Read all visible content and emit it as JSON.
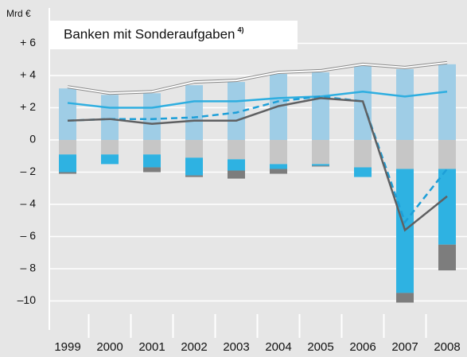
{
  "chart_data": {
    "type": "bar",
    "title": "Banken mit Sonderaufgaben",
    "title_note": "4)",
    "y_label": "Mrd €",
    "categories": [
      "1999",
      "2000",
      "2001",
      "2002",
      "2003",
      "2004",
      "2005",
      "2006",
      "2007",
      "2008"
    ],
    "ylim": [
      -11.8,
      8
    ],
    "yticks": [
      {
        "value": 6,
        "label": "+ 6"
      },
      {
        "value": 4,
        "label": "+ 4"
      },
      {
        "value": 2,
        "label": "+ 2"
      },
      0,
      {
        "value": -2,
        "label": "– 2"
      },
      {
        "value": -4,
        "label": "– 4"
      },
      {
        "value": -6,
        "label": "– 6"
      },
      {
        "value": -8,
        "label": "– 8"
      },
      {
        "value": -10,
        "label": "–10"
      }
    ],
    "grid": true,
    "series": [
      {
        "type": "bar",
        "color": "#9fcde6",
        "values": [
          3.2,
          2.8,
          2.9,
          3.4,
          3.6,
          4.1,
          4.2,
          4.6,
          4.4,
          4.7
        ]
      },
      {
        "type": "bar",
        "color": "#c6c6c6",
        "values": [
          -0.9,
          -0.9,
          -0.9,
          -1.1,
          -1.2,
          -1.5,
          -1.5,
          -1.7,
          -1.8,
          -1.8
        ]
      },
      {
        "type": "bar",
        "color": "#2eb2e2",
        "values": [
          -1.1,
          -0.6,
          -0.8,
          -1.1,
          -0.7,
          -0.3,
          -0.1,
          -0.6,
          -7.7,
          -4.7
        ]
      },
      {
        "type": "bar",
        "color": "#7d7d7d",
        "values": [
          -0.1,
          0,
          -0.3,
          -0.1,
          -0.5,
          -0.3,
          -0.05,
          0,
          -0.6,
          -1.6
        ]
      },
      {
        "type": "outline-line",
        "color": "#8a8a8a",
        "values": [
          3.3,
          2.9,
          3.0,
          3.6,
          3.7,
          4.2,
          4.3,
          4.7,
          4.5,
          4.8
        ]
      },
      {
        "type": "line",
        "color": "#2eaee0",
        "values": [
          2.3,
          2.0,
          2.0,
          2.4,
          2.4,
          2.6,
          2.7,
          3.0,
          2.7,
          3.0
        ]
      },
      {
        "type": "dashed-line",
        "color": "#1d9fd8",
        "values": [
          1.2,
          1.3,
          1.3,
          1.4,
          1.7,
          2.4,
          2.7,
          2.4,
          -5.1,
          -1.8
        ]
      },
      {
        "type": "line",
        "color": "#5f6062",
        "values": [
          1.2,
          1.3,
          1.0,
          1.2,
          1.2,
          2.1,
          2.6,
          2.4,
          -5.6,
          -3.5
        ]
      }
    ]
  }
}
